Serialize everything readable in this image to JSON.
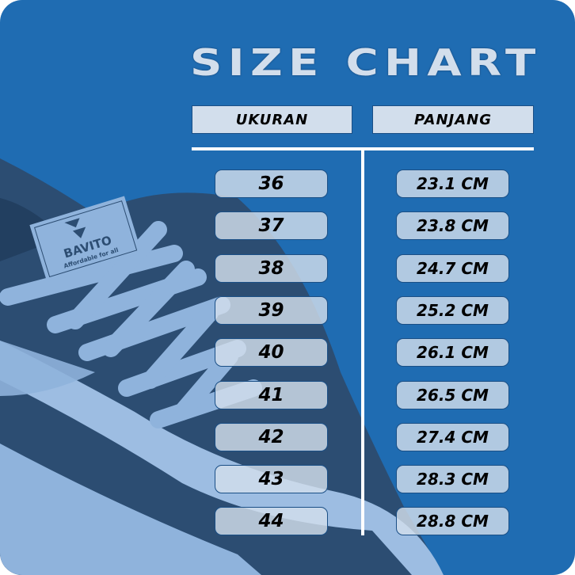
{
  "title": "SIZE CHART",
  "headers": {
    "size": "UKURAN",
    "length": "PANJANG"
  },
  "rows": [
    {
      "size": "36",
      "length": "23.1 CM"
    },
    {
      "size": "37",
      "length": "23.8 CM"
    },
    {
      "size": "38",
      "length": "24.7 CM"
    },
    {
      "size": "39",
      "length": "25.2 CM"
    },
    {
      "size": "40",
      "length": "26.1 CM"
    },
    {
      "size": "41",
      "length": "26.5 CM"
    },
    {
      "size": "42",
      "length": "27.4 CM"
    },
    {
      "size": "43",
      "length": "28.3 CM"
    },
    {
      "size": "44",
      "length": "28.8 CM"
    }
  ],
  "brand": {
    "name": "BAVITO",
    "tagline": "Affordable for all"
  },
  "colors": {
    "background": "#1f6cb2",
    "shoe": "#2c4d72",
    "lace": "#8fb3dc",
    "cell": "#d2deec"
  }
}
